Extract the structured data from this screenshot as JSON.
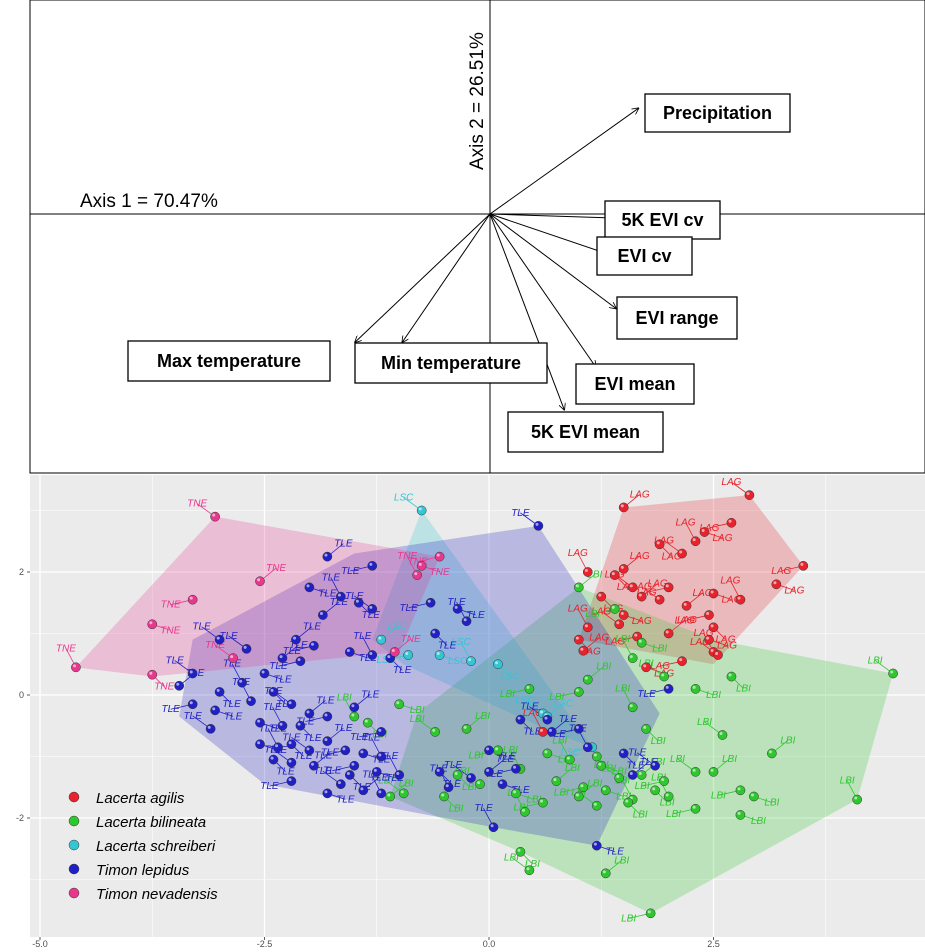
{
  "chart_data": [
    {
      "type": "biplot",
      "axis1_label": "Axis 1 = 70.47%",
      "axis2_label": "Axis 2 = 26.51%",
      "vectors": [
        {
          "label": "Precipitation",
          "x": 0.66,
          "y": 0.47
        },
        {
          "label": "5K EVI cv",
          "x": 0.62,
          "y": -0.02
        },
        {
          "label": "EVI cv",
          "x": 0.56,
          "y": -0.19
        },
        {
          "label": "EVI range",
          "x": 0.56,
          "y": -0.42
        },
        {
          "label": "EVI mean",
          "x": 0.47,
          "y": -0.68
        },
        {
          "label": "5K EVI mean",
          "x": 0.33,
          "y": -0.87
        },
        {
          "label": "Min temperature",
          "x": -0.39,
          "y": -0.57
        },
        {
          "label": "Max temperature",
          "x": -0.6,
          "y": -0.57
        }
      ]
    },
    {
      "type": "scatter",
      "xlim": [
        -5.3,
        4.7
      ],
      "ylim": [
        -3.9,
        3.4
      ],
      "xticks": [
        "-5.0",
        "-2.5",
        "0.0",
        "2.5"
      ],
      "yticks": [
        "2",
        "0",
        "-2"
      ],
      "legend_position": "bottom-left",
      "series": [
        {
          "name": "Lacerta agilis",
          "code": "LAG",
          "color": "#e8232d",
          "hull": [
            [
              1.5,
              3.05
            ],
            [
              2.9,
              3.25
            ],
            [
              3.5,
              2.1
            ],
            [
              2.5,
              0.5
            ],
            [
              1.0,
              0.9
            ]
          ],
          "points": [
            [
              2.9,
              3.25
            ],
            [
              1.5,
              3.05
            ],
            [
              2.7,
              2.8
            ],
            [
              2.4,
              2.65
            ],
            [
              2.3,
              2.5
            ],
            [
              1.9,
              2.45
            ],
            [
              2.15,
              2.3
            ],
            [
              1.5,
              2.05
            ],
            [
              3.5,
              2.1
            ],
            [
              3.2,
              1.8
            ],
            [
              1.1,
              2.0
            ],
            [
              1.4,
              1.95
            ],
            [
              1.6,
              1.75
            ],
            [
              1.7,
              1.6
            ],
            [
              2.0,
              1.75
            ],
            [
              2.5,
              1.65
            ],
            [
              2.8,
              1.55
            ],
            [
              1.25,
              1.6
            ],
            [
              1.9,
              1.55
            ],
            [
              2.2,
              1.45
            ],
            [
              2.45,
              1.3
            ],
            [
              1.5,
              1.3
            ],
            [
              1.1,
              1.1
            ],
            [
              2.5,
              1.1
            ],
            [
              1.45,
              1.15
            ],
            [
              2.0,
              1.0
            ],
            [
              1.65,
              0.95
            ],
            [
              2.45,
              0.9
            ],
            [
              2.5,
              0.7
            ],
            [
              1.0,
              0.9
            ],
            [
              2.55,
              0.65
            ],
            [
              1.05,
              0.72
            ],
            [
              2.15,
              0.55
            ],
            [
              1.75,
              0.45
            ],
            [
              0.6,
              -0.6
            ]
          ]
        },
        {
          "name": "Lacerta bilineata",
          "code": "LBI",
          "color": "#2ec72e",
          "hull": [
            [
              0.35,
              -2.55
            ],
            [
              1.8,
              -3.55
            ],
            [
              4.1,
              -1.7
            ],
            [
              4.5,
              0.35
            ],
            [
              2.5,
              0.9
            ],
            [
              1.0,
              1.75
            ],
            [
              -0.8,
              -0.3
            ],
            [
              -1.1,
              -1.65
            ]
          ],
          "points": [
            [
              4.5,
              0.35
            ],
            [
              1.0,
              1.75
            ],
            [
              1.4,
              1.4
            ],
            [
              1.7,
              0.85
            ],
            [
              1.6,
              0.6
            ],
            [
              2.7,
              0.3
            ],
            [
              1.95,
              0.3
            ],
            [
              1.1,
              0.25
            ],
            [
              1.0,
              0.05
            ],
            [
              2.3,
              0.1
            ],
            [
              1.6,
              -0.2
            ],
            [
              1.75,
              -0.55
            ],
            [
              2.6,
              -0.65
            ],
            [
              3.15,
              -0.95
            ],
            [
              0.45,
              0.1
            ],
            [
              -1.0,
              -0.15
            ],
            [
              -1.5,
              -0.35
            ],
            [
              -1.35,
              -0.45
            ],
            [
              -0.6,
              -0.6
            ],
            [
              -0.25,
              -0.55
            ],
            [
              0.1,
              -0.9
            ],
            [
              0.65,
              -0.95
            ],
            [
              0.9,
              -1.05
            ],
            [
              1.2,
              -1.0
            ],
            [
              1.45,
              -1.35
            ],
            [
              1.7,
              -1.3
            ],
            [
              1.95,
              -1.4
            ],
            [
              1.25,
              -1.15
            ],
            [
              0.35,
              -1.2
            ],
            [
              -0.35,
              -1.3
            ],
            [
              -0.1,
              -1.45
            ],
            [
              0.75,
              -1.4
            ],
            [
              1.05,
              -1.5
            ],
            [
              1.3,
              -1.55
            ],
            [
              1.6,
              -1.7
            ],
            [
              1.85,
              -1.55
            ],
            [
              2.3,
              -1.25
            ],
            [
              2.5,
              -1.25
            ],
            [
              2.8,
              -1.55
            ],
            [
              2.95,
              -1.65
            ],
            [
              2.0,
              -1.65
            ],
            [
              1.55,
              -1.75
            ],
            [
              1.2,
              -1.8
            ],
            [
              1.0,
              -1.65
            ],
            [
              0.6,
              -1.75
            ],
            [
              0.3,
              -1.6
            ],
            [
              0.4,
              -1.9
            ],
            [
              -0.5,
              -1.65
            ],
            [
              -0.95,
              -1.6
            ],
            [
              -1.1,
              -1.65
            ],
            [
              2.3,
              -1.85
            ],
            [
              2.8,
              -1.95
            ],
            [
              4.1,
              -1.7
            ],
            [
              0.35,
              -2.55
            ],
            [
              0.45,
              -2.85
            ],
            [
              1.3,
              -2.9
            ],
            [
              1.8,
              -3.55
            ]
          ]
        },
        {
          "name": "Lacerta schreiberi",
          "code": "LSC",
          "color": "#34c6d4",
          "hull": [
            [
              -0.75,
              3.0
            ],
            [
              -1.3,
              0.9
            ],
            [
              -0.95,
              0.5
            ],
            [
              0.7,
              -0.6
            ],
            [
              1.15,
              -0.85
            ]
          ],
          "points": [
            [
              -0.75,
              3.0
            ],
            [
              -1.2,
              0.9
            ],
            [
              -0.9,
              0.65
            ],
            [
              -0.55,
              0.65
            ],
            [
              -0.2,
              0.55
            ],
            [
              0.1,
              0.5
            ],
            [
              0.6,
              -0.3
            ],
            [
              0.65,
              -0.35
            ],
            [
              1.15,
              -0.85
            ]
          ]
        },
        {
          "name": "Timon lepidus",
          "code": "TLE",
          "color": "#2020c4",
          "hull": [
            [
              -3.3,
              0.9
            ],
            [
              -1.5,
              2.3
            ],
            [
              0.55,
              2.75
            ],
            [
              1.9,
              -0.3
            ],
            [
              1.2,
              -2.45
            ],
            [
              0.05,
              -2.15
            ],
            [
              -2.5,
              -1.45
            ],
            [
              -3.45,
              -0.35
            ]
          ],
          "points": [
            [
              0.55,
              2.75
            ],
            [
              -1.8,
              2.25
            ],
            [
              -1.3,
              2.1
            ],
            [
              -2.0,
              1.75
            ],
            [
              -1.65,
              1.6
            ],
            [
              -1.45,
              1.5
            ],
            [
              -1.3,
              1.4
            ],
            [
              -1.85,
              1.3
            ],
            [
              -0.65,
              1.5
            ],
            [
              -0.35,
              1.4
            ],
            [
              -0.25,
              1.2
            ],
            [
              -0.6,
              1.0
            ],
            [
              -3.0,
              0.9
            ],
            [
              -2.15,
              0.9
            ],
            [
              -1.95,
              0.8
            ],
            [
              -1.55,
              0.7
            ],
            [
              -1.3,
              0.65
            ],
            [
              -1.1,
              0.6
            ],
            [
              -2.7,
              0.75
            ],
            [
              -2.3,
              0.6
            ],
            [
              -2.1,
              0.55
            ],
            [
              -2.5,
              0.35
            ],
            [
              -2.75,
              0.2
            ],
            [
              -3.0,
              0.05
            ],
            [
              -3.3,
              0.35
            ],
            [
              -3.45,
              0.15
            ],
            [
              -3.3,
              -0.15
            ],
            [
              -3.05,
              -0.25
            ],
            [
              -2.65,
              -0.1
            ],
            [
              -2.4,
              0.05
            ],
            [
              -2.2,
              -0.15
            ],
            [
              -2.0,
              -0.3
            ],
            [
              -1.8,
              -0.35
            ],
            [
              -2.55,
              -0.45
            ],
            [
              -2.3,
              -0.5
            ],
            [
              -2.1,
              -0.5
            ],
            [
              -3.1,
              -0.55
            ],
            [
              -1.5,
              -0.2
            ],
            [
              -1.2,
              -0.6
            ],
            [
              -2.55,
              -0.8
            ],
            [
              -2.35,
              -0.85
            ],
            [
              -2.2,
              -0.8
            ],
            [
              -2.0,
              -0.9
            ],
            [
              -1.8,
              -0.75
            ],
            [
              -1.6,
              -0.9
            ],
            [
              -1.4,
              -0.95
            ],
            [
              -1.2,
              -1.0
            ],
            [
              -2.4,
              -1.05
            ],
            [
              -2.2,
              -1.1
            ],
            [
              -1.95,
              -1.15
            ],
            [
              -1.5,
              -1.15
            ],
            [
              -1.25,
              -1.25
            ],
            [
              -1.0,
              -1.3
            ],
            [
              -0.55,
              -1.25
            ],
            [
              -0.2,
              -1.35
            ],
            [
              0.0,
              -1.25
            ],
            [
              0.3,
              -1.2
            ],
            [
              0.15,
              -1.45
            ],
            [
              -0.45,
              -1.5
            ],
            [
              -1.55,
              -1.3
            ],
            [
              -1.65,
              -1.45
            ],
            [
              -1.4,
              -1.55
            ],
            [
              -2.2,
              -1.4
            ],
            [
              -1.8,
              -1.6
            ],
            [
              -1.2,
              -1.6
            ],
            [
              0.35,
              -0.4
            ],
            [
              0.65,
              -0.4
            ],
            [
              0.7,
              -0.6
            ],
            [
              1.0,
              -0.55
            ],
            [
              0.0,
              -0.9
            ],
            [
              1.1,
              -0.85
            ],
            [
              1.5,
              -0.95
            ],
            [
              1.85,
              -1.15
            ],
            [
              1.6,
              -1.3
            ],
            [
              2.0,
              0.1
            ],
            [
              1.2,
              -2.45
            ],
            [
              0.05,
              -2.15
            ]
          ]
        },
        {
          "name": "Timon nevadensis",
          "code": "TNE",
          "color": "#e8388e",
          "hull": [
            [
              -4.6,
              0.45
            ],
            [
              -3.05,
              2.9
            ],
            [
              -0.55,
              2.25
            ],
            [
              -1.0,
              0.7
            ],
            [
              -3.75,
              0.3
            ]
          ],
          "points": [
            [
              -3.05,
              2.9
            ],
            [
              -2.55,
              1.85
            ],
            [
              -3.3,
              1.55
            ],
            [
              -3.75,
              1.15
            ],
            [
              -4.6,
              0.45
            ],
            [
              -3.75,
              0.33
            ],
            [
              -2.85,
              0.6
            ],
            [
              -1.05,
              0.7
            ],
            [
              -0.55,
              2.25
            ],
            [
              -0.75,
              2.1
            ],
            [
              -0.8,
              1.95
            ]
          ]
        }
      ]
    }
  ]
}
